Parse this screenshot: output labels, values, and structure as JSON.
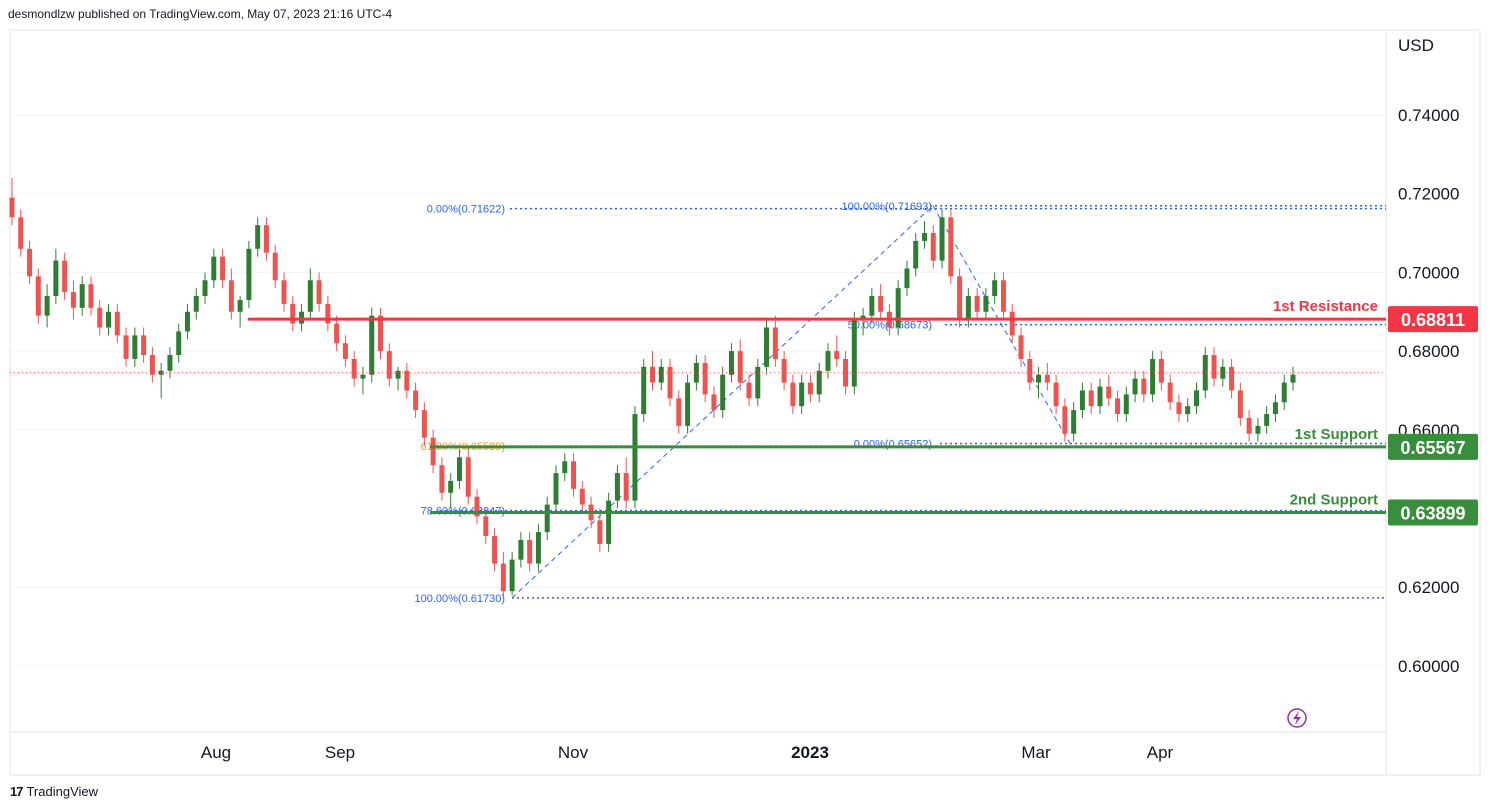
{
  "header": {
    "attribution": "desmondlzw published on TradingView.com, May 07, 2023 21:16 UTC-4"
  },
  "footer": {
    "brand": "TradingView",
    "logo_text": "17"
  },
  "colors": {
    "up": "#26a69a",
    "up_dark": "#2e7d32",
    "down": "#ef5350",
    "resistance": "#f23645",
    "support": "#388e3c",
    "fib": "#2962ff",
    "fib_orange": "#ff9800",
    "current": "#ef5350",
    "grid": "#f0f3fa"
  },
  "chart_data": {
    "type": "candlestick",
    "title": "",
    "currency_label": "USD",
    "ylim": [
      0.585,
      0.7435
    ],
    "y_ticks": [
      "0.74000",
      "0.72000",
      "0.70000",
      "0.68000",
      "0.66000",
      "0.62000",
      "0.60000"
    ],
    "x_ticks": [
      {
        "label": "Aug",
        "bold": false
      },
      {
        "label": "Sep",
        "bold": false
      },
      {
        "label": "Nov",
        "bold": false
      },
      {
        "label": "2023",
        "bold": true
      },
      {
        "label": "Mar",
        "bold": false
      },
      {
        "label": "Apr",
        "bold": false
      }
    ],
    "last_price": 0.6745,
    "levels": [
      {
        "name": "1st Resistance",
        "value": 0.68811,
        "label": "0.68811",
        "kind": "resistance"
      },
      {
        "name": "1st Support",
        "value": 0.65567,
        "label": "0.65567",
        "kind": "support"
      },
      {
        "name": "2nd Support",
        "value": 0.63899,
        "label": "0.63899",
        "kind": "support"
      }
    ],
    "fib_levels": [
      {
        "label": "0.00%(0.71622)",
        "value": 0.71622
      },
      {
        "label": "61.80%(0.65589)",
        "value": 0.65589
      },
      {
        "label": "78.60%(0.63947)",
        "value": 0.63947
      },
      {
        "label": "100.00%(0.61730)",
        "value": 0.6173
      },
      {
        "label": "100.00%(0.71693)",
        "value": 0.71693
      },
      {
        "label": "50.00%(0.68673)",
        "value": 0.68673
      },
      {
        "label": "0.00%(0.65652)",
        "value": 0.65652
      }
    ],
    "candles": [
      [
        0.719,
        0.724,
        0.712,
        0.714
      ],
      [
        0.714,
        0.716,
        0.704,
        0.706
      ],
      [
        0.706,
        0.708,
        0.697,
        0.699
      ],
      [
        0.699,
        0.701,
        0.687,
        0.689
      ],
      [
        0.689,
        0.697,
        0.686,
        0.694
      ],
      [
        0.694,
        0.706,
        0.692,
        0.703
      ],
      [
        0.703,
        0.705,
        0.693,
        0.695
      ],
      [
        0.695,
        0.698,
        0.688,
        0.691
      ],
      [
        0.691,
        0.699,
        0.689,
        0.697
      ],
      [
        0.697,
        0.699,
        0.689,
        0.691
      ],
      [
        0.691,
        0.693,
        0.684,
        0.686
      ],
      [
        0.686,
        0.692,
        0.684,
        0.69
      ],
      [
        0.69,
        0.692,
        0.682,
        0.684
      ],
      [
        0.684,
        0.686,
        0.676,
        0.678
      ],
      [
        0.678,
        0.686,
        0.676,
        0.684
      ],
      [
        0.684,
        0.686,
        0.677,
        0.679
      ],
      [
        0.679,
        0.681,
        0.672,
        0.674
      ],
      [
        0.674,
        0.677,
        0.668,
        0.675
      ],
      [
        0.675,
        0.681,
        0.673,
        0.679
      ],
      [
        0.679,
        0.687,
        0.677,
        0.685
      ],
      [
        0.685,
        0.692,
        0.683,
        0.69
      ],
      [
        0.69,
        0.696,
        0.688,
        0.694
      ],
      [
        0.694,
        0.7,
        0.692,
        0.698
      ],
      [
        0.698,
        0.706,
        0.696,
        0.704
      ],
      [
        0.704,
        0.706,
        0.696,
        0.698
      ],
      [
        0.698,
        0.701,
        0.688,
        0.69
      ],
      [
        0.69,
        0.694,
        0.686,
        0.693
      ],
      [
        0.693,
        0.708,
        0.691,
        0.706
      ],
      [
        0.706,
        0.714,
        0.704,
        0.712
      ],
      [
        0.712,
        0.714,
        0.703,
        0.705
      ],
      [
        0.705,
        0.707,
        0.696,
        0.698
      ],
      [
        0.698,
        0.7,
        0.69,
        0.692
      ],
      [
        0.692,
        0.694,
        0.685,
        0.687
      ],
      [
        0.687,
        0.692,
        0.685,
        0.69
      ],
      [
        0.69,
        0.701,
        0.688,
        0.698
      ],
      [
        0.698,
        0.7,
        0.69,
        0.692
      ],
      [
        0.692,
        0.694,
        0.685,
        0.687
      ],
      [
        0.687,
        0.689,
        0.68,
        0.682
      ],
      [
        0.682,
        0.684,
        0.676,
        0.678
      ],
      [
        0.678,
        0.68,
        0.671,
        0.673
      ],
      [
        0.673,
        0.676,
        0.669,
        0.674
      ],
      [
        0.674,
        0.691,
        0.672,
        0.689
      ],
      [
        0.689,
        0.691,
        0.678,
        0.68
      ],
      [
        0.68,
        0.682,
        0.671,
        0.673
      ],
      [
        0.673,
        0.676,
        0.67,
        0.675
      ],
      [
        0.675,
        0.677,
        0.668,
        0.67
      ],
      [
        0.67,
        0.672,
        0.663,
        0.665
      ],
      [
        0.665,
        0.667,
        0.656,
        0.658
      ],
      [
        0.658,
        0.66,
        0.649,
        0.651
      ],
      [
        0.651,
        0.653,
        0.642,
        0.644
      ],
      [
        0.644,
        0.649,
        0.64,
        0.647
      ],
      [
        0.647,
        0.655,
        0.645,
        0.653
      ],
      [
        0.653,
        0.656,
        0.641,
        0.643
      ],
      [
        0.643,
        0.645,
        0.636,
        0.638
      ],
      [
        0.638,
        0.64,
        0.631,
        0.633
      ],
      [
        0.633,
        0.635,
        0.624,
        0.626
      ],
      [
        0.626,
        0.629,
        0.617,
        0.619
      ],
      [
        0.619,
        0.629,
        0.618,
        0.627
      ],
      [
        0.627,
        0.634,
        0.625,
        0.632
      ],
      [
        0.632,
        0.634,
        0.624,
        0.626
      ],
      [
        0.626,
        0.636,
        0.624,
        0.634
      ],
      [
        0.634,
        0.643,
        0.632,
        0.641
      ],
      [
        0.641,
        0.651,
        0.639,
        0.649
      ],
      [
        0.649,
        0.654,
        0.647,
        0.652
      ],
      [
        0.652,
        0.654,
        0.643,
        0.645
      ],
      [
        0.645,
        0.647,
        0.639,
        0.641
      ],
      [
        0.641,
        0.643,
        0.635,
        0.637
      ],
      [
        0.637,
        0.64,
        0.629,
        0.631
      ],
      [
        0.631,
        0.644,
        0.629,
        0.642
      ],
      [
        0.642,
        0.651,
        0.64,
        0.649
      ],
      [
        0.649,
        0.653,
        0.64,
        0.642
      ],
      [
        0.642,
        0.666,
        0.64,
        0.664
      ],
      [
        0.664,
        0.678,
        0.662,
        0.676
      ],
      [
        0.676,
        0.68,
        0.67,
        0.672
      ],
      [
        0.672,
        0.678,
        0.67,
        0.676
      ],
      [
        0.676,
        0.678,
        0.666,
        0.668
      ],
      [
        0.668,
        0.67,
        0.659,
        0.661
      ],
      [
        0.661,
        0.674,
        0.659,
        0.672
      ],
      [
        0.672,
        0.679,
        0.67,
        0.677
      ],
      [
        0.677,
        0.679,
        0.667,
        0.669
      ],
      [
        0.669,
        0.671,
        0.663,
        0.665
      ],
      [
        0.665,
        0.676,
        0.663,
        0.674
      ],
      [
        0.674,
        0.682,
        0.672,
        0.68
      ],
      [
        0.68,
        0.683,
        0.67,
        0.672
      ],
      [
        0.672,
        0.674,
        0.666,
        0.668
      ],
      [
        0.668,
        0.678,
        0.666,
        0.676
      ],
      [
        0.676,
        0.688,
        0.674,
        0.686
      ],
      [
        0.686,
        0.689,
        0.676,
        0.678
      ],
      [
        0.678,
        0.68,
        0.67,
        0.672
      ],
      [
        0.672,
        0.674,
        0.664,
        0.666
      ],
      [
        0.666,
        0.674,
        0.664,
        0.672
      ],
      [
        0.672,
        0.674,
        0.667,
        0.669
      ],
      [
        0.669,
        0.677,
        0.667,
        0.675
      ],
      [
        0.675,
        0.682,
        0.673,
        0.68
      ],
      [
        0.68,
        0.684,
        0.676,
        0.678
      ],
      [
        0.678,
        0.68,
        0.669,
        0.671
      ],
      [
        0.671,
        0.69,
        0.669,
        0.688
      ],
      [
        0.688,
        0.691,
        0.684,
        0.689
      ],
      [
        0.689,
        0.696,
        0.687,
        0.694
      ],
      [
        0.694,
        0.697,
        0.688,
        0.69
      ],
      [
        0.69,
        0.692,
        0.684,
        0.686
      ],
      [
        0.686,
        0.698,
        0.684,
        0.696
      ],
      [
        0.696,
        0.703,
        0.694,
        0.701
      ],
      [
        0.701,
        0.71,
        0.699,
        0.708
      ],
      [
        0.708,
        0.713,
        0.706,
        0.71
      ],
      [
        0.71,
        0.712,
        0.701,
        0.703
      ],
      [
        0.703,
        0.716,
        0.701,
        0.714
      ],
      [
        0.714,
        0.716,
        0.697,
        0.699
      ],
      [
        0.699,
        0.701,
        0.686,
        0.688
      ],
      [
        0.688,
        0.696,
        0.686,
        0.694
      ],
      [
        0.694,
        0.696,
        0.688,
        0.69
      ],
      [
        0.69,
        0.696,
        0.688,
        0.694
      ],
      [
        0.694,
        0.7,
        0.692,
        0.698
      ],
      [
        0.698,
        0.7,
        0.688,
        0.69
      ],
      [
        0.69,
        0.692,
        0.682,
        0.684
      ],
      [
        0.684,
        0.686,
        0.676,
        0.678
      ],
      [
        0.678,
        0.68,
        0.67,
        0.672
      ],
      [
        0.672,
        0.676,
        0.668,
        0.674
      ],
      [
        0.674,
        0.677,
        0.67,
        0.672
      ],
      [
        0.672,
        0.674,
        0.664,
        0.666
      ],
      [
        0.666,
        0.668,
        0.657,
        0.659
      ],
      [
        0.659,
        0.667,
        0.657,
        0.665
      ],
      [
        0.665,
        0.672,
        0.663,
        0.67
      ],
      [
        0.67,
        0.672,
        0.664,
        0.666
      ],
      [
        0.666,
        0.673,
        0.664,
        0.671
      ],
      [
        0.671,
        0.674,
        0.666,
        0.668
      ],
      [
        0.668,
        0.67,
        0.662,
        0.664
      ],
      [
        0.664,
        0.671,
        0.662,
        0.669
      ],
      [
        0.669,
        0.675,
        0.667,
        0.673
      ],
      [
        0.673,
        0.675,
        0.667,
        0.669
      ],
      [
        0.669,
        0.68,
        0.667,
        0.678
      ],
      [
        0.678,
        0.68,
        0.67,
        0.672
      ],
      [
        0.672,
        0.674,
        0.665,
        0.667
      ],
      [
        0.667,
        0.669,
        0.662,
        0.664
      ],
      [
        0.664,
        0.668,
        0.662,
        0.666
      ],
      [
        0.666,
        0.672,
        0.664,
        0.67
      ],
      [
        0.67,
        0.681,
        0.668,
        0.679
      ],
      [
        0.679,
        0.681,
        0.671,
        0.673
      ],
      [
        0.673,
        0.678,
        0.671,
        0.676
      ],
      [
        0.676,
        0.678,
        0.668,
        0.67
      ],
      [
        0.67,
        0.672,
        0.661,
        0.663
      ],
      [
        0.663,
        0.665,
        0.657,
        0.659
      ],
      [
        0.659,
        0.663,
        0.657,
        0.661
      ],
      [
        0.661,
        0.666,
        0.659,
        0.664
      ],
      [
        0.664,
        0.669,
        0.662,
        0.667
      ],
      [
        0.667,
        0.674,
        0.665,
        0.672
      ],
      [
        0.672,
        0.676,
        0.67,
        0.674
      ]
    ]
  }
}
